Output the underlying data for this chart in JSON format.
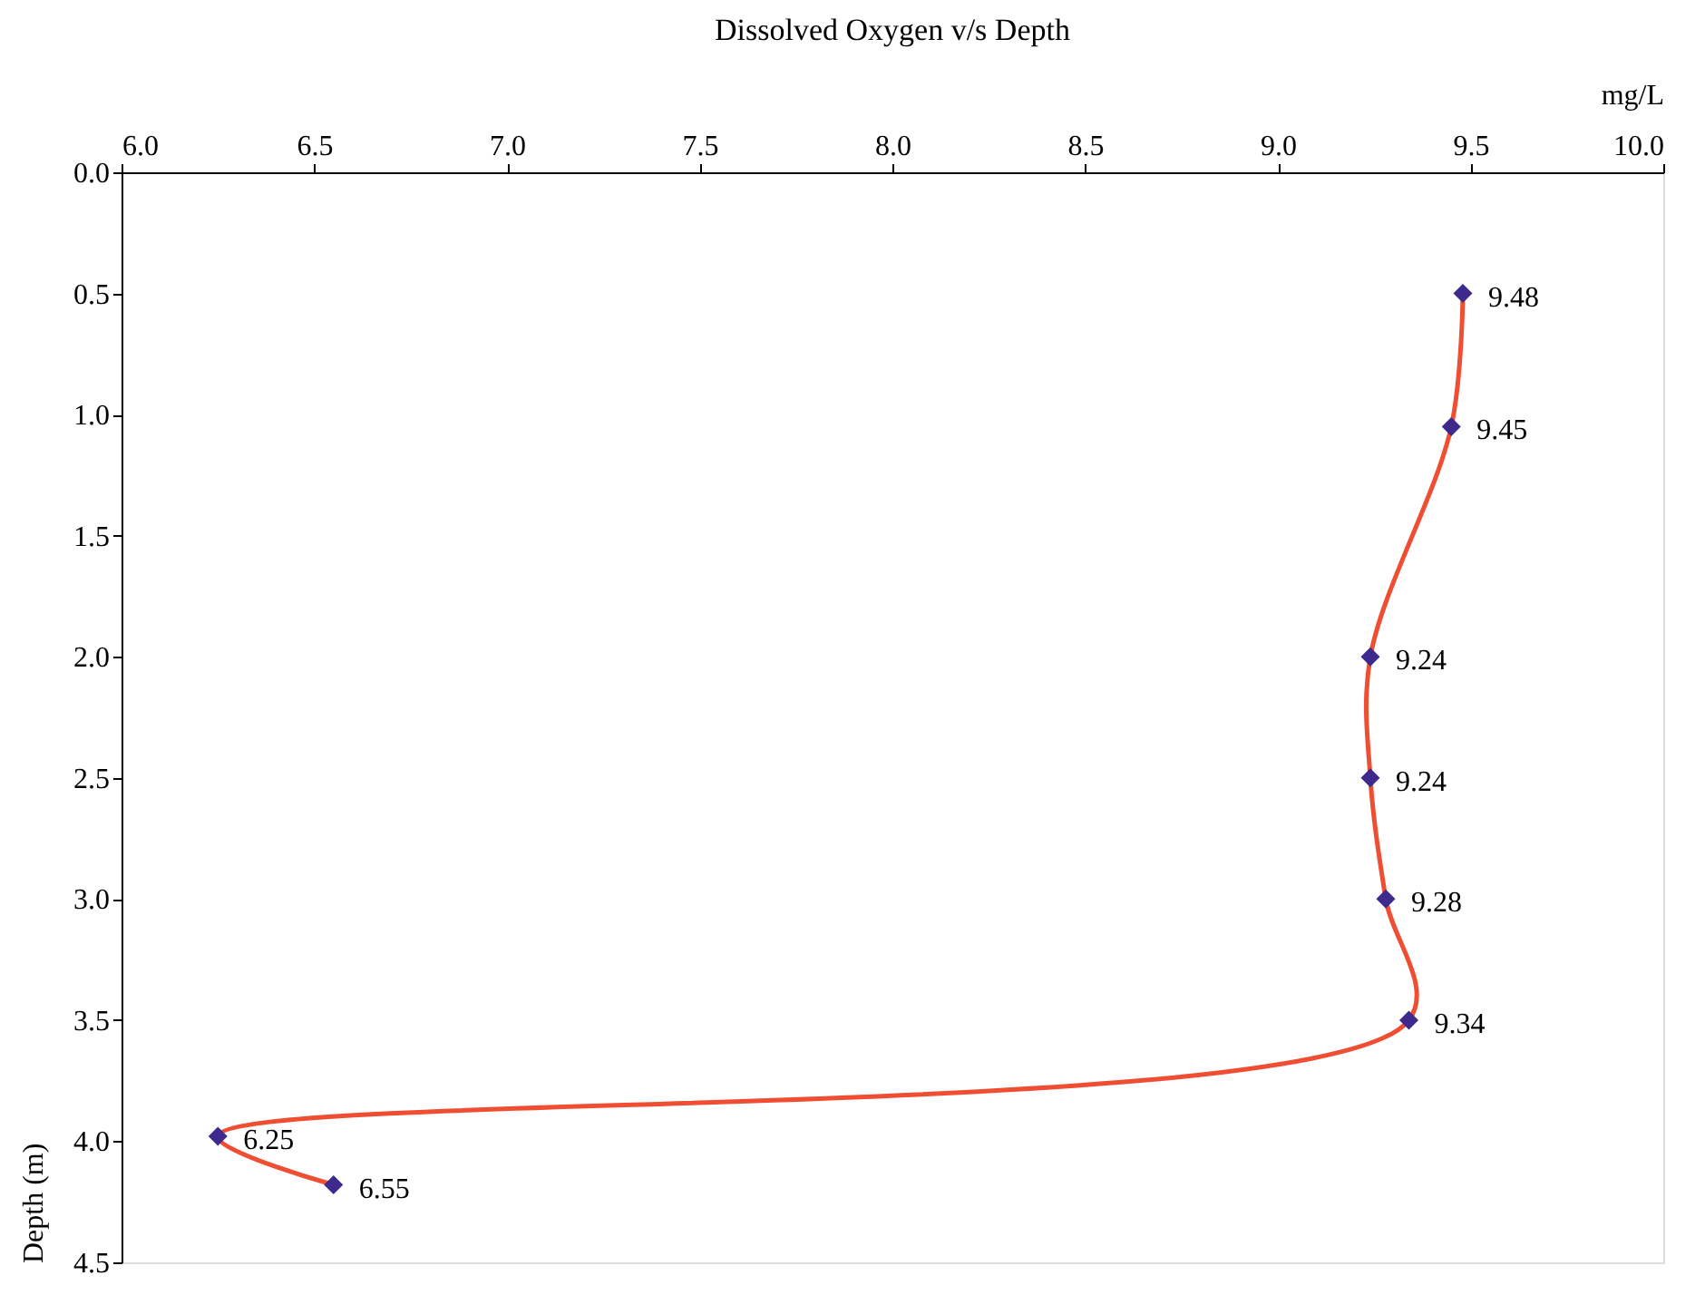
{
  "chart_data": {
    "type": "line",
    "orientation": "horizontal",
    "title": "Dissolved Oxygen v/s Depth",
    "xlabel": "mg/L",
    "ylabel": "Depth (m)",
    "series": [
      {
        "color": "#f04e32",
        "marker": "none",
        "x": [
          0.5,
          1.05,
          2.0,
          2.5,
          3.0,
          3.5,
          3.98,
          4.18
        ],
        "values": [
          9.48,
          9.45,
          9.24,
          9.24,
          9.28,
          9.34,
          6.25,
          6.55
        ]
      },
      {
        "type": "scatter",
        "color": "#3d2a8c",
        "marker": "diamond",
        "x": [
          0.5,
          1.05,
          2.0,
          2.5,
          3.0,
          3.5,
          3.98,
          4.18
        ],
        "values": [
          9.48,
          9.45,
          9.24,
          9.24,
          9.28,
          9.34,
          6.25,
          6.55
        ],
        "data_labels": true
      }
    ],
    "xlim": [
      6.0,
      10.0
    ],
    "xticks": [
      {
        "value": 6,
        "label": "6.0"
      },
      6.5,
      {
        "value": 7,
        "label": "7.0"
      },
      7.5,
      {
        "value": 8,
        "label": "8.0"
      },
      8.5,
      {
        "value": 9,
        "label": "9.0"
      },
      9.5,
      {
        "value": 10,
        "label": "10.0"
      }
    ],
    "ylim": [
      4.5,
      0.0
    ],
    "yticks": [
      {
        "value": 0,
        "label": "0.0"
      },
      0.5,
      {
        "value": 1,
        "label": "1.0"
      },
      1.5,
      {
        "value": 2,
        "label": "2.0"
      },
      2.5,
      {
        "value": 3,
        "label": "3.0"
      },
      3.5,
      {
        "value": 4,
        "label": "4.0"
      },
      4.5
    ],
    "grid": false
  }
}
